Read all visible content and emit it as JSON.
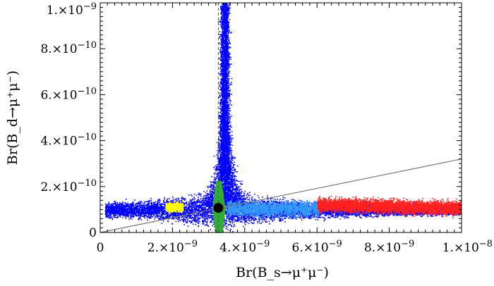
{
  "chart_data": {
    "type": "scatter",
    "title": "",
    "xlabel": "Br(B_s→μ⁺μ⁻)",
    "ylabel": "Br(B_d→μ⁺μ⁻)",
    "xlim": [
      0,
      1e-08
    ],
    "ylim": [
      0,
      1e-09
    ],
    "grid": false,
    "legend": "none",
    "x_ticks": [
      {
        "value": 0,
        "mant": "0",
        "exp": ""
      },
      {
        "value": 2e-09,
        "mant": "2.×10",
        "exp": "−9"
      },
      {
        "value": 4e-09,
        "mant": "4.×10",
        "exp": "−9"
      },
      {
        "value": 6e-09,
        "mant": "6.×10",
        "exp": "−9"
      },
      {
        "value": 8e-09,
        "mant": "8.×10",
        "exp": "−9"
      },
      {
        "value": 1e-08,
        "mant": "1.×10",
        "exp": "−8"
      }
    ],
    "y_ticks": [
      {
        "value": 0,
        "mant": "0",
        "exp": ""
      },
      {
        "value": 2e-10,
        "mant": "2.×10",
        "exp": "−10"
      },
      {
        "value": 4e-10,
        "mant": "4.×10",
        "exp": "−10"
      },
      {
        "value": 6e-10,
        "mant": "6.×10",
        "exp": "−10"
      },
      {
        "value": 8e-10,
        "mant": "8.×10",
        "exp": "−10"
      },
      {
        "value": 1e-09,
        "mant": "1.×10",
        "exp": "−9"
      }
    ],
    "series": [
      {
        "color": "#0000ff",
        "region": {
          "x": [
            0,
            1e-08
          ],
          "y": [
            6e-11,
            1e-09
          ]
        }
      },
      {
        "color": "#3399ff",
        "region": {
          "x": [
            3.5e-09,
            6e-09
          ],
          "y": [
            7e-11,
            1.6e-10
          ]
        }
      },
      {
        "color": "#ff2020",
        "region": {
          "x": [
            6e-09,
            1e-08
          ],
          "y": [
            9e-11,
            2e-10
          ]
        }
      },
      {
        "color": "#ffff00",
        "region": {
          "x": [
            1.8e-09,
            2.3e-09
          ],
          "y": [
            9.5e-11,
            1.4e-10
          ]
        }
      },
      {
        "color": "#33aa33",
        "region": {
          "x": [
            3.1e-09,
            3.4e-09
          ],
          "y": [
            0,
            2.2e-10
          ]
        }
      }
    ],
    "reference_point": {
      "x": 3.27e-09,
      "y": 1.07e-10,
      "color": "#000000"
    },
    "vertical_line": {
      "x": 3.27e-09,
      "style": "dashed"
    },
    "diagonal_line": {
      "points": [
        [
          0,
          0
        ],
        [
          1e-08,
          3.2e-10
        ]
      ],
      "color": "#777777"
    }
  }
}
